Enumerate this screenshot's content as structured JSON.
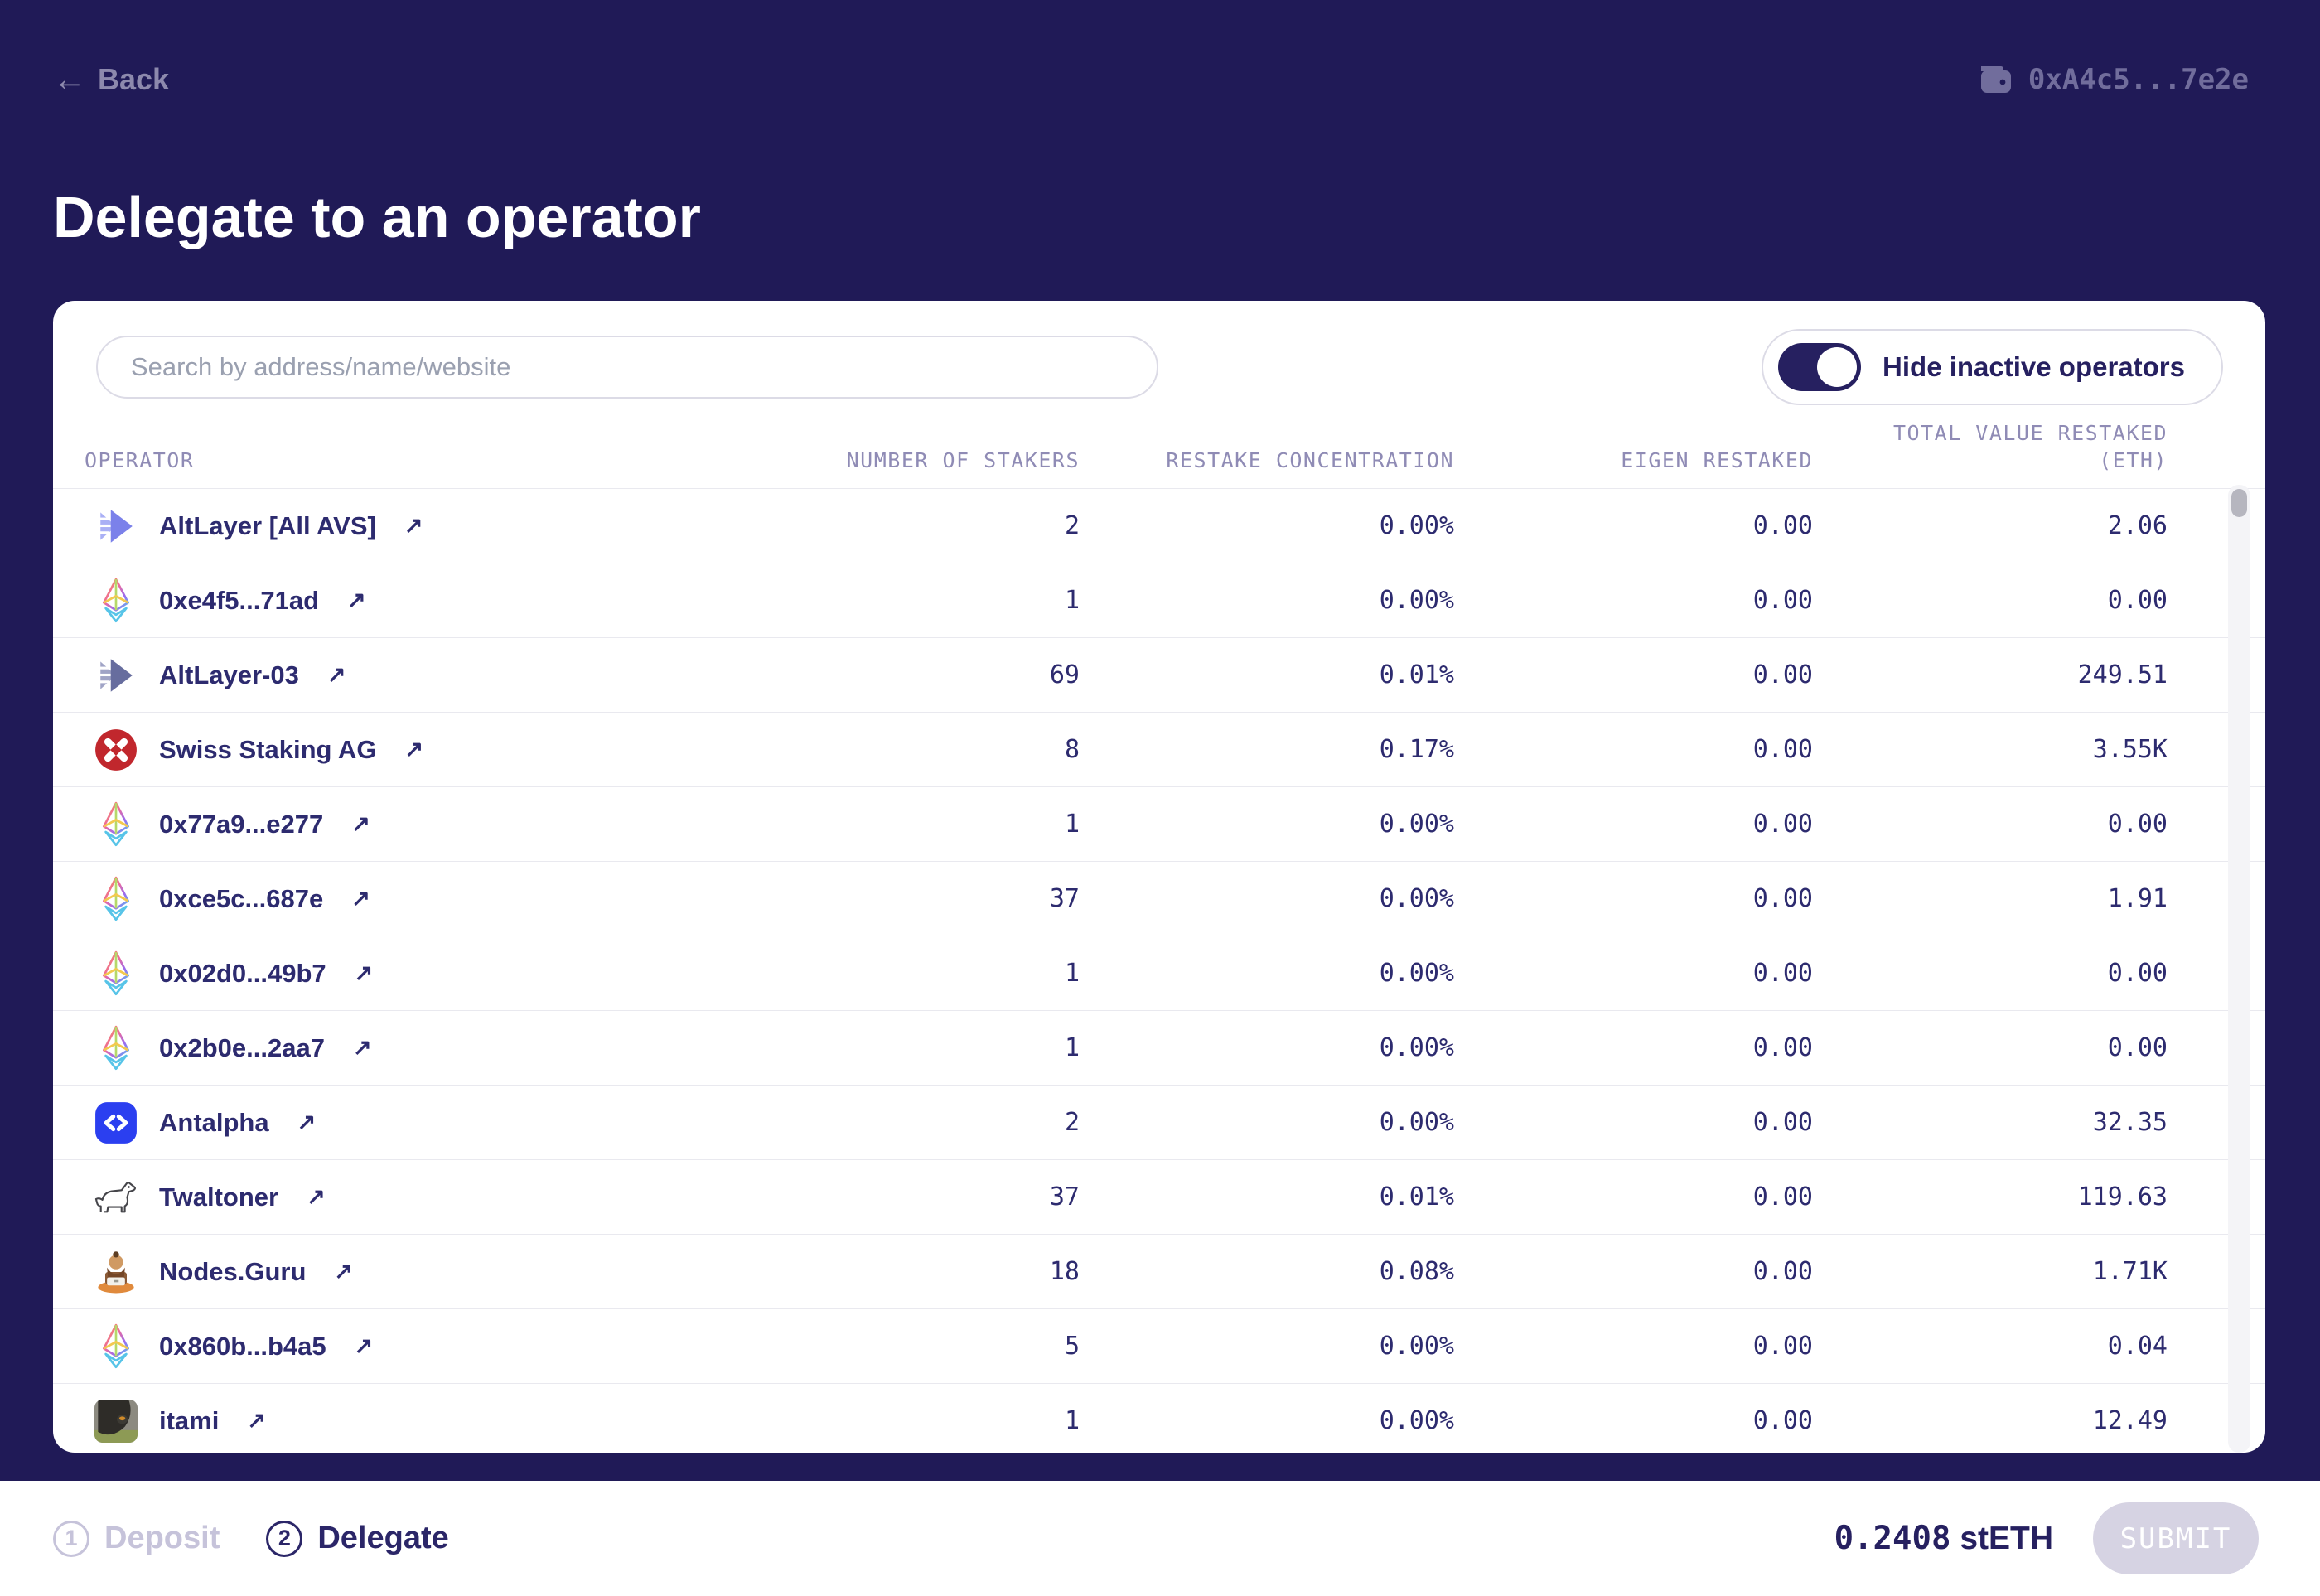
{
  "header": {
    "back_label": "Back",
    "wallet_address": "0xA4c5...7e2e"
  },
  "page_title": "Delegate to an operator",
  "panel": {
    "search_placeholder": "Search by address/name/website",
    "toggle_label": "Hide inactive operators",
    "toggle_state": "on",
    "table": {
      "columns": {
        "operator": "OPERATOR",
        "stakers": "NUMBER OF STAKERS",
        "concentration": "RESTAKE CONCENTRATION",
        "eigen": "EIGEN RESTAKED",
        "total_line1": "TOTAL VALUE RESTAKED",
        "total_line2": "(ETH)"
      },
      "rows": [
        {
          "name": "AltLayer [All AVS]",
          "icon": "altlayer-bright",
          "stakers": "2",
          "concentration": "0.00%",
          "eigen": "0.00",
          "total": "2.06"
        },
        {
          "name": "0xe4f5...71ad",
          "icon": "eth",
          "stakers": "1",
          "concentration": "0.00%",
          "eigen": "0.00",
          "total": "0.00"
        },
        {
          "name": "AltLayer-03",
          "icon": "altlayer-muted",
          "stakers": "69",
          "concentration": "0.01%",
          "eigen": "0.00",
          "total": "249.51"
        },
        {
          "name": "Swiss Staking AG",
          "icon": "swiss-x",
          "stakers": "8",
          "concentration": "0.17%",
          "eigen": "0.00",
          "total": "3.55K"
        },
        {
          "name": "0x77a9...e277",
          "icon": "eth",
          "stakers": "1",
          "concentration": "0.00%",
          "eigen": "0.00",
          "total": "0.00"
        },
        {
          "name": "0xce5c...687e",
          "icon": "eth",
          "stakers": "37",
          "concentration": "0.00%",
          "eigen": "0.00",
          "total": "1.91"
        },
        {
          "name": "0x02d0...49b7",
          "icon": "eth",
          "stakers": "1",
          "concentration": "0.00%",
          "eigen": "0.00",
          "total": "0.00"
        },
        {
          "name": "0x2b0e...2aa7",
          "icon": "eth",
          "stakers": "1",
          "concentration": "0.00%",
          "eigen": "0.00",
          "total": "0.00"
        },
        {
          "name": "Antalpha",
          "icon": "antalpha",
          "stakers": "2",
          "concentration": "0.00%",
          "eigen": "0.00",
          "total": "32.35"
        },
        {
          "name": "Twaltoner",
          "icon": "dog",
          "stakers": "37",
          "concentration": "0.01%",
          "eigen": "0.00",
          "total": "119.63"
        },
        {
          "name": "Nodes.Guru",
          "icon": "guru",
          "stakers": "18",
          "concentration": "0.08%",
          "eigen": "0.00",
          "total": "1.71K"
        },
        {
          "name": "0x860b...b4a5",
          "icon": "eth",
          "stakers": "5",
          "concentration": "0.00%",
          "eigen": "0.00",
          "total": "0.04"
        },
        {
          "name": "itami",
          "icon": "photo",
          "stakers": "1",
          "concentration": "0.00%",
          "eigen": "0.00",
          "total": "12.49"
        }
      ],
      "external_link_glyph": "↗"
    }
  },
  "footer": {
    "steps": [
      {
        "number": "1",
        "label": "Deposit",
        "active": false
      },
      {
        "number": "2",
        "label": "Delegate",
        "active": true
      }
    ],
    "amount_value": "0.2408",
    "amount_unit": "stETH",
    "submit_label": "SUBMIT"
  },
  "colors": {
    "background": "#201a57",
    "panel": "#ffffff",
    "text_primary": "#2d2b6f",
    "muted_header": "#8f8bb5",
    "toggle_on": "#262060",
    "submit_disabled_bg": "#d6d3e3",
    "antalpha_blue": "#2b3ff0",
    "swiss_red": "#c1272d"
  }
}
